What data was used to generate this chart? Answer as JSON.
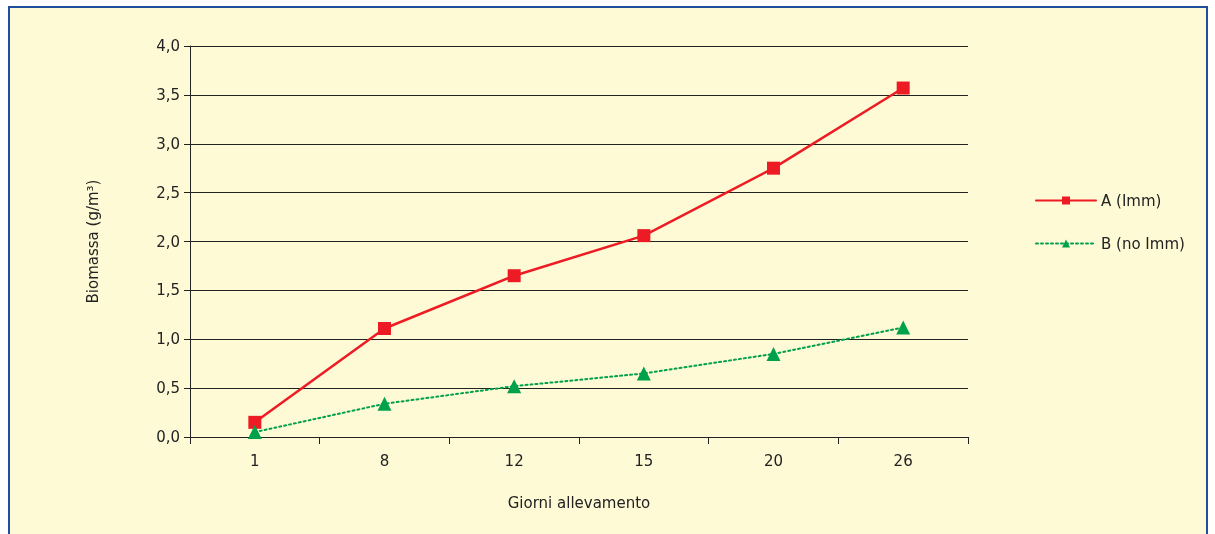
{
  "chart_data": {
    "type": "line",
    "xlabel": "Giorni allevamento",
    "ylabel": "Biomassa (g/m³)",
    "categories": [
      "1",
      "8",
      "12",
      "15",
      "20",
      "26"
    ],
    "series": [
      {
        "name": "A (Imm)",
        "color": "#ed1c24",
        "marker": "square",
        "line_style": "solid",
        "values": [
          0.15,
          1.11,
          1.65,
          2.06,
          2.75,
          3.57
        ]
      },
      {
        "name": "B (no Imm)",
        "color": "#00a14b",
        "marker": "triangle",
        "line_style": "dotted",
        "values": [
          0.05,
          0.34,
          0.52,
          0.65,
          0.85,
          1.12
        ]
      }
    ],
    "ylim": [
      0,
      4
    ],
    "yticks": [
      {
        "value": 0,
        "label": "0,0"
      },
      {
        "value": 0.5,
        "label": "0,5"
      },
      {
        "value": 1,
        "label": "1,0"
      },
      {
        "value": 1.5,
        "label": "1,5"
      },
      {
        "value": 2,
        "label": "2,0"
      },
      {
        "value": 2.5,
        "label": "2,5"
      },
      {
        "value": 3,
        "label": "3,0"
      },
      {
        "value": 3.5,
        "label": "3,5"
      },
      {
        "value": 4,
        "label": "4,0"
      }
    ],
    "grid": "y",
    "legend": "right"
  }
}
